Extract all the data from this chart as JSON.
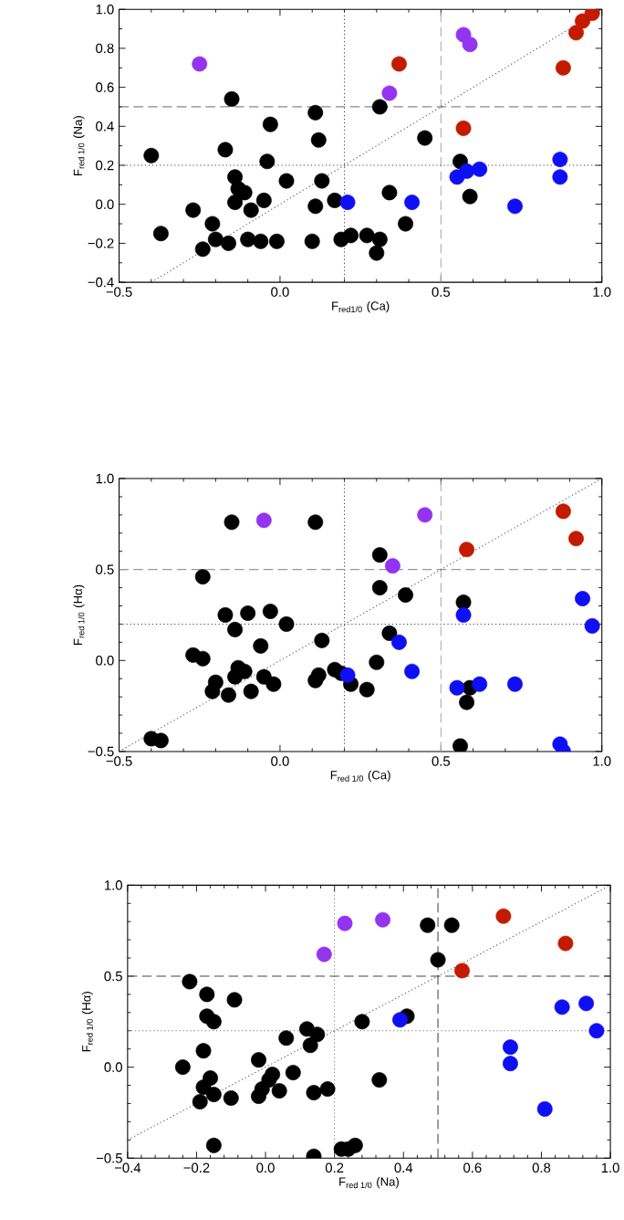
{
  "chart_data": [
    {
      "type": "scatter",
      "xlabel": "F$_{red1/0}$ (Ca)",
      "ylabel": "F$_{red 1/0}$ (Na)",
      "marker": "circle",
      "xlim": [
        -0.5,
        1.0
      ],
      "ylim": [
        -0.4,
        1.0
      ],
      "xticks": [
        {
          "value": -0.5,
          "label": "−0.5"
        },
        {
          "value": 0,
          "label": "0.0"
        },
        0.5,
        {
          "value": 1,
          "label": "1.0"
        }
      ],
      "yticks": [
        {
          "value": -0.4,
          "label": "−0.4"
        },
        {
          "value": -0.2,
          "label": "−0.2"
        },
        {
          "value": 0,
          "label": "0.0"
        },
        0.2,
        0.4,
        0.6,
        0.8,
        {
          "value": 1,
          "label": "1.0"
        }
      ],
      "ref_lines": [
        {
          "axis": "x",
          "value": 0.2,
          "color": "#444444",
          "line_style": "dotted"
        },
        {
          "axis": "x",
          "value": 0.5,
          "color": "#aaaaaa",
          "line_style": "dashed"
        },
        {
          "axis": "y",
          "value": 0.5,
          "color": "#555555",
          "line_style": "dashed"
        },
        {
          "axis": "y",
          "value": 0.2,
          "color": "#444444",
          "line_style": "dotted"
        }
      ],
      "series": [
        {
          "type": "line",
          "color": "#555555",
          "line_style": "dotted",
          "marker": "none",
          "x": [
            -0.4,
            1.0
          ],
          "values": [
            -0.4,
            1.0
          ]
        },
        {
          "color": "#000000",
          "x": [
            -0.4,
            -0.37,
            -0.27,
            -0.24,
            -0.21,
            -0.2,
            -0.17,
            -0.16,
            -0.15,
            -0.14,
            -0.13,
            -0.14,
            -0.11,
            -0.1,
            -0.09,
            -0.06,
            -0.05,
            -0.04,
            -0.03,
            -0.01,
            0.02,
            0.11,
            0.11,
            0.1,
            0.12,
            0.13,
            0.17,
            0.19,
            0.22,
            0.27,
            0.3,
            0.31,
            0.31,
            0.34,
            0.39,
            0.45,
            0.56,
            0.59
          ],
          "values": [
            0.25,
            -0.15,
            -0.03,
            -0.23,
            -0.1,
            -0.18,
            0.28,
            -0.2,
            0.54,
            0.14,
            0.08,
            0.01,
            0.06,
            -0.18,
            -0.03,
            -0.19,
            0.02,
            0.22,
            0.41,
            -0.19,
            0.12,
            0.47,
            -0.01,
            -0.19,
            0.33,
            0.12,
            0.02,
            -0.18,
            -0.16,
            -0.16,
            -0.25,
            -0.18,
            0.5,
            0.06,
            -0.1,
            0.34,
            0.22,
            0.04
          ]
        },
        {
          "color": "#0f0ff5",
          "x": [
            0.21,
            0.41,
            0.55,
            0.58,
            0.62,
            0.73,
            0.87,
            0.87
          ],
          "values": [
            0.01,
            0.01,
            0.14,
            0.17,
            0.18,
            -0.01,
            0.23,
            0.14
          ]
        },
        {
          "color": "#c41a00",
          "x": [
            0.37,
            0.57,
            0.88,
            0.92,
            0.94,
            0.97
          ],
          "values": [
            0.72,
            0.39,
            0.7,
            0.88,
            0.94,
            0.98
          ]
        },
        {
          "color": "#9433f0",
          "x": [
            -0.25,
            0.34,
            0.57,
            0.59
          ],
          "values": [
            0.72,
            0.57,
            0.87,
            0.82
          ]
        }
      ]
    },
    {
      "type": "scatter",
      "xlabel": "F$_{red 1/0}$ (Ca)",
      "ylabel": "F$_{red 1/0}$ (Hα)",
      "marker": "circle",
      "xlim": [
        -0.5,
        1.0
      ],
      "ylim": [
        -0.5,
        1.0
      ],
      "xticks": [
        {
          "value": -0.5,
          "label": "−0.5"
        },
        {
          "value": 0,
          "label": "0.0"
        },
        0.5,
        {
          "value": 1,
          "label": "1.0"
        }
      ],
      "yticks": [
        {
          "value": -0.5,
          "label": "−0.5"
        },
        {
          "value": 0,
          "label": "0.0"
        },
        0.5,
        {
          "value": 1,
          "label": "1.0"
        }
      ],
      "ref_lines": [
        {
          "axis": "x",
          "value": 0.2,
          "color": "#444444",
          "line_style": "dotted"
        },
        {
          "axis": "x",
          "value": 0.5,
          "color": "#aaaaaa",
          "line_style": "dashed"
        },
        {
          "axis": "y",
          "value": 0.5,
          "color": "#999999",
          "line_style": "dashed"
        },
        {
          "axis": "y",
          "value": 0.2,
          "color": "#444444",
          "line_style": "dotted"
        }
      ],
      "series": [
        {
          "type": "line",
          "color": "#555555",
          "line_style": "dotted",
          "marker": "none",
          "x": [
            -0.5,
            1.0
          ],
          "values": [
            -0.5,
            1.0
          ]
        },
        {
          "color": "#000000",
          "x": [
            -0.4,
            -0.37,
            -0.27,
            -0.24,
            -0.24,
            -0.21,
            -0.2,
            -0.17,
            -0.16,
            -0.15,
            -0.14,
            -0.14,
            -0.13,
            -0.11,
            -0.1,
            -0.09,
            -0.06,
            -0.05,
            -0.03,
            -0.02,
            0.02,
            0.11,
            0.11,
            0.12,
            0.13,
            0.17,
            0.19,
            0.22,
            0.27,
            0.3,
            0.31,
            0.31,
            0.34,
            0.39,
            0.57,
            0.59,
            0.58,
            0.56
          ],
          "values": [
            -0.43,
            -0.44,
            0.03,
            0.01,
            0.46,
            -0.17,
            -0.12,
            0.25,
            -0.19,
            0.76,
            -0.09,
            0.17,
            -0.04,
            -0.06,
            0.26,
            -0.17,
            0.08,
            -0.09,
            0.27,
            -0.13,
            0.2,
            0.76,
            -0.11,
            -0.08,
            0.11,
            -0.05,
            -0.07,
            -0.13,
            -0.16,
            -0.01,
            0.58,
            0.4,
            0.15,
            0.36,
            0.32,
            -0.15,
            -0.23,
            -0.47
          ]
        },
        {
          "color": "#0f0ff5",
          "x": [
            0.21,
            0.37,
            0.41,
            0.55,
            0.57,
            0.62,
            0.73,
            0.87,
            0.88,
            0.94,
            0.97
          ],
          "values": [
            -0.08,
            0.1,
            -0.06,
            -0.15,
            0.25,
            -0.13,
            -0.13,
            -0.46,
            -0.5,
            0.34,
            0.19
          ]
        },
        {
          "color": "#c41a00",
          "x": [
            0.58,
            0.88,
            0.92
          ],
          "values": [
            0.61,
            0.82,
            0.67
          ]
        },
        {
          "color": "#9433f0",
          "x": [
            -0.05,
            0.45,
            0.35
          ],
          "values": [
            0.77,
            0.8,
            0.52
          ]
        }
      ]
    },
    {
      "type": "scatter",
      "xlabel": "F$_{red 1/0}$ (Na)",
      "ylabel": "F$_{red 1/0}$ (Hα)",
      "marker": "circle",
      "xlim": [
        -0.4,
        1.0
      ],
      "ylim": [
        -0.5,
        1.0
      ],
      "xticks": [
        {
          "value": -0.4,
          "label": "−0.4"
        },
        {
          "value": -0.2,
          "label": "−0.2"
        },
        {
          "value": 0,
          "label": "0.0"
        },
        0.2,
        0.4,
        0.6,
        0.8,
        {
          "value": 1,
          "label": "1.0"
        }
      ],
      "yticks": [
        {
          "value": -0.5,
          "label": "−0.5"
        },
        {
          "value": 0,
          "label": "0.0"
        },
        0.5,
        {
          "value": 1,
          "label": "1.0"
        }
      ],
      "ref_lines": [
        {
          "axis": "x",
          "value": 0.2,
          "color": "#777777",
          "line_style": "dotted"
        },
        {
          "axis": "x",
          "value": 0.5,
          "color": "#444444",
          "line_style": "dashed"
        },
        {
          "axis": "y",
          "value": 0.5,
          "color": "#444444",
          "line_style": "dashed"
        },
        {
          "axis": "y",
          "value": 0.2,
          "color": "#777777",
          "line_style": "dotted"
        }
      ],
      "series": [
        {
          "type": "line",
          "color": "#555555",
          "line_style": "dotted",
          "marker": "none",
          "x": [
            -0.4,
            1.0
          ],
          "values": [
            -0.4,
            1.0
          ]
        },
        {
          "color": "#000000",
          "x": [
            -0.24,
            -0.22,
            -0.19,
            -0.18,
            -0.17,
            -0.17,
            -0.15,
            -0.18,
            -0.16,
            -0.15,
            -0.15,
            -0.09,
            -0.1,
            -0.02,
            -0.02,
            -0.01,
            0.01,
            0.02,
            0.04,
            0.06,
            0.08,
            0.12,
            0.13,
            0.15,
            0.14,
            0.14,
            0.18,
            0.22,
            0.24,
            0.26,
            0.28,
            0.33,
            0.41,
            0.47,
            0.5,
            0.54
          ],
          "values": [
            0.0,
            0.47,
            -0.19,
            0.09,
            0.4,
            0.28,
            0.25,
            -0.11,
            -0.06,
            -0.15,
            -0.43,
            0.37,
            -0.17,
            0.04,
            -0.16,
            -0.12,
            -0.07,
            -0.04,
            -0.13,
            0.16,
            -0.03,
            0.21,
            0.12,
            0.18,
            -0.14,
            -0.49,
            -0.12,
            -0.45,
            -0.45,
            -0.43,
            0.25,
            -0.07,
            0.28,
            0.78,
            0.59,
            0.78
          ]
        },
        {
          "color": "#0f0ff5",
          "x": [
            0.39,
            0.71,
            0.71,
            0.81,
            0.86,
            0.93,
            0.96
          ],
          "values": [
            0.26,
            0.11,
            0.02,
            -0.23,
            0.33,
            0.35,
            0.2
          ]
        },
        {
          "color": "#c41a00",
          "x": [
            0.57,
            0.69,
            0.87
          ],
          "values": [
            0.53,
            0.83,
            0.68
          ]
        },
        {
          "color": "#9433f0",
          "x": [
            0.17,
            0.23,
            0.34
          ],
          "values": [
            0.62,
            0.79,
            0.81
          ]
        }
      ]
    }
  ]
}
